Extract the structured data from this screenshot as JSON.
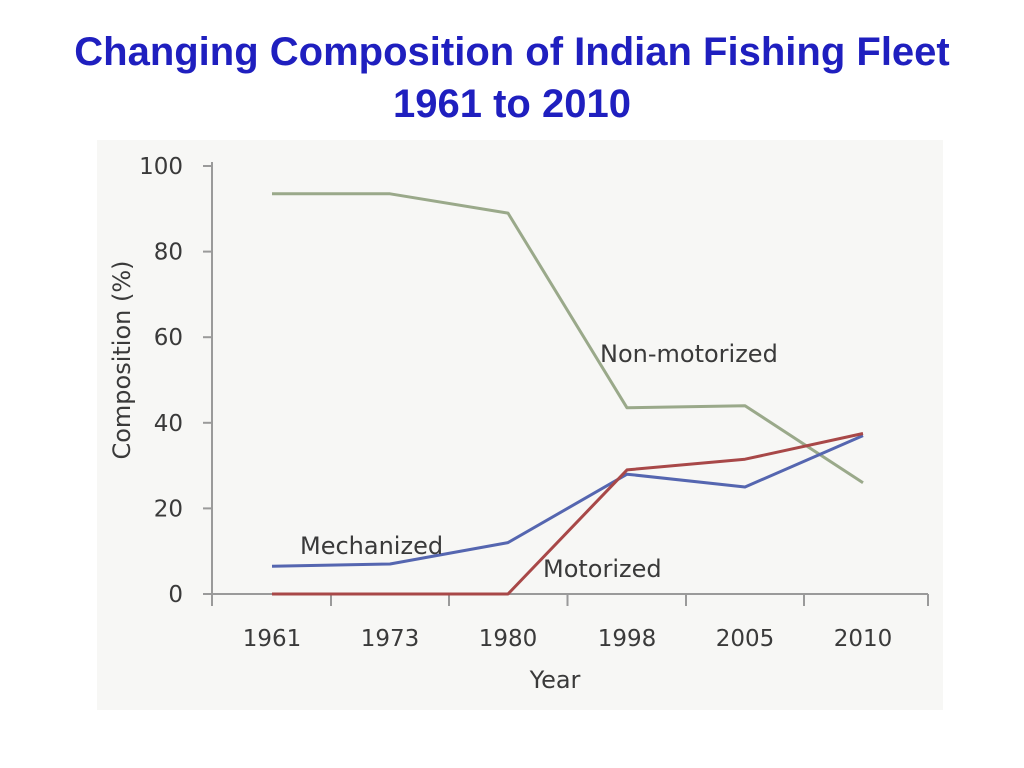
{
  "title": {
    "line1": "Changing Composition of Indian Fishing Fleet",
    "line2": "1961 to 2010"
  },
  "colors": {
    "title": "#1f1fbf",
    "plot_background": "#f7f7f5",
    "axis": "#9a9a9a",
    "non_motorized": "#9aa98a",
    "mechanized": "#5566b0",
    "motorized": "#a84848"
  },
  "chart_data": {
    "type": "line",
    "categories": [
      "1961",
      "1973",
      "1980",
      "1998",
      "2005",
      "2010"
    ],
    "xlabel": "Year",
    "ylabel": "Composition (%)",
    "ylim": [
      0,
      100
    ],
    "yticks": [
      0,
      20,
      40,
      60,
      80,
      100
    ],
    "grid": false,
    "series": [
      {
        "name": "Non-motorized",
        "color_key": "non_motorized",
        "values": [
          93.5,
          93.5,
          89,
          43.5,
          44,
          26
        ]
      },
      {
        "name": "Mechanized",
        "color_key": "mechanized",
        "values": [
          6.5,
          7,
          12,
          28,
          25,
          37
        ]
      },
      {
        "name": "Motorized",
        "color_key": "motorized",
        "values": [
          0,
          0,
          0,
          29,
          31.5,
          37.5
        ]
      }
    ]
  }
}
